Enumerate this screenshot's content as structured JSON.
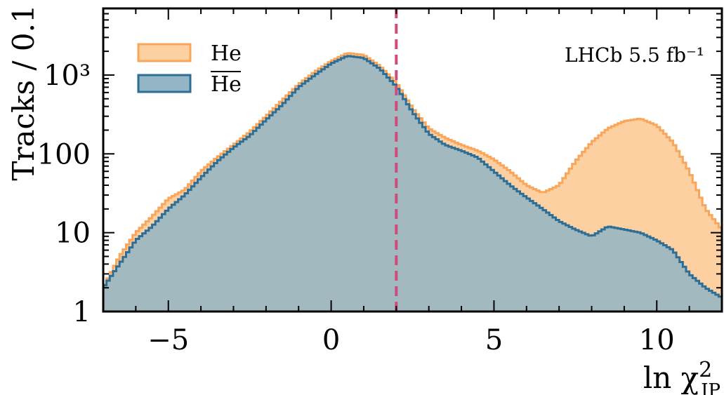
{
  "chart_data": {
    "type": "histogram",
    "xlabel": "ln χ²IP",
    "ylabel": "Tracks / 0.1",
    "xlim": [
      -7,
      12
    ],
    "ylim": [
      1,
      7000
    ],
    "yscale": "log",
    "xticks": [
      -5,
      0,
      5,
      10
    ],
    "xtick_labels": [
      "−5",
      "0",
      "5",
      "10"
    ],
    "yticks": [
      1,
      10,
      100,
      1000
    ],
    "ytick_labels": [
      "1",
      "10",
      "100",
      "10³"
    ],
    "bin_width": 0.1,
    "cut_line_x": 2,
    "annotation": "LHCb 5.5 fb⁻¹",
    "legend_position": "top-left",
    "series": [
      {
        "name": "He",
        "fill_color": "#fdd0a2",
        "line_color": "#f9a65a",
        "points": [
          [
            -7,
            2
          ],
          [
            -6.5,
            5
          ],
          [
            -6,
            10
          ],
          [
            -5.5,
            16
          ],
          [
            -5,
            27
          ],
          [
            -4.5,
            35
          ],
          [
            -4,
            60
          ],
          [
            -3.5,
            90
          ],
          [
            -3,
            130
          ],
          [
            -2.5,
            190
          ],
          [
            -2,
            300
          ],
          [
            -1.5,
            480
          ],
          [
            -1,
            760
          ],
          [
            -0.5,
            1100
          ],
          [
            0,
            1500
          ],
          [
            0.5,
            1900
          ],
          [
            1,
            1800
          ],
          [
            1.5,
            1300
          ],
          [
            2,
            800
          ],
          [
            2.5,
            380
          ],
          [
            3,
            210
          ],
          [
            3.5,
            160
          ],
          [
            4,
            130
          ],
          [
            4.5,
            110
          ],
          [
            5,
            85
          ],
          [
            5.5,
            60
          ],
          [
            6,
            40
          ],
          [
            6.5,
            32
          ],
          [
            7,
            40
          ],
          [
            7.5,
            80
          ],
          [
            8,
            140
          ],
          [
            8.5,
            210
          ],
          [
            9,
            260
          ],
          [
            9.5,
            280
          ],
          [
            10,
            230
          ],
          [
            10.5,
            140
          ],
          [
            11,
            60
          ],
          [
            11.5,
            20
          ],
          [
            12,
            11
          ]
        ]
      },
      {
        "name": "He-bar",
        "fill_color": "#93b5c6",
        "line_color": "#2c6e95",
        "points": [
          [
            -7,
            2
          ],
          [
            -6.5,
            4
          ],
          [
            -6,
            8
          ],
          [
            -5.5,
            12
          ],
          [
            -5,
            20
          ],
          [
            -4.5,
            30
          ],
          [
            -4,
            50
          ],
          [
            -3.5,
            80
          ],
          [
            -3,
            120
          ],
          [
            -2.5,
            170
          ],
          [
            -2,
            270
          ],
          [
            -1.5,
            420
          ],
          [
            -1,
            700
          ],
          [
            -0.5,
            1000
          ],
          [
            0,
            1400
          ],
          [
            0.5,
            1750
          ],
          [
            1,
            1650
          ],
          [
            1.5,
            1200
          ],
          [
            2,
            720
          ],
          [
            2.5,
            340
          ],
          [
            3,
            180
          ],
          [
            3.5,
            130
          ],
          [
            4,
            110
          ],
          [
            4.5,
            90
          ],
          [
            5,
            60
          ],
          [
            5.5,
            40
          ],
          [
            6,
            28
          ],
          [
            6.5,
            20
          ],
          [
            7,
            14
          ],
          [
            7.5,
            11
          ],
          [
            8,
            9
          ],
          [
            8.5,
            12
          ],
          [
            9,
            11
          ],
          [
            9.5,
            10
          ],
          [
            10,
            8
          ],
          [
            10.5,
            6
          ],
          [
            11,
            3
          ],
          [
            11.5,
            2
          ],
          [
            12,
            1.5
          ]
        ]
      }
    ],
    "legend": [
      {
        "label": "He",
        "overline": false
      },
      {
        "label": "He",
        "overline": true
      }
    ]
  }
}
